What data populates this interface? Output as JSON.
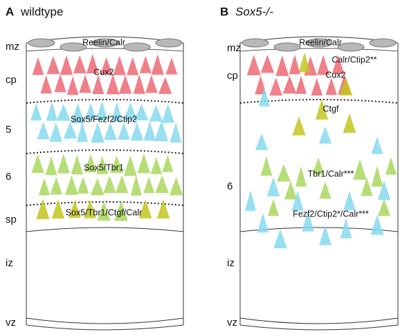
{
  "panels": [
    {
      "letter": "A",
      "title": "wildtype",
      "layers": [
        "mz",
        "cp",
        "5",
        "6",
        "sp",
        "iz",
        "vz"
      ],
      "markers": [
        "Reelin/Calr",
        "Cux2",
        "Sox5/Fezf2/Ctip2",
        "Sox5/Tbr1",
        "Sox5/Tbr1/Ctgf/Calr"
      ]
    },
    {
      "letter": "B",
      "title": "Sox5-/-",
      "layers": [
        "mz",
        "cp",
        "6",
        "iz",
        "vz"
      ],
      "markers": [
        "Reelin/Calr",
        "Calr/Ctip2**",
        "Cux2",
        "Ctgf",
        "Tbr1/Calr***",
        "Fezf2/Ctip2*/Calr***"
      ]
    }
  ]
}
